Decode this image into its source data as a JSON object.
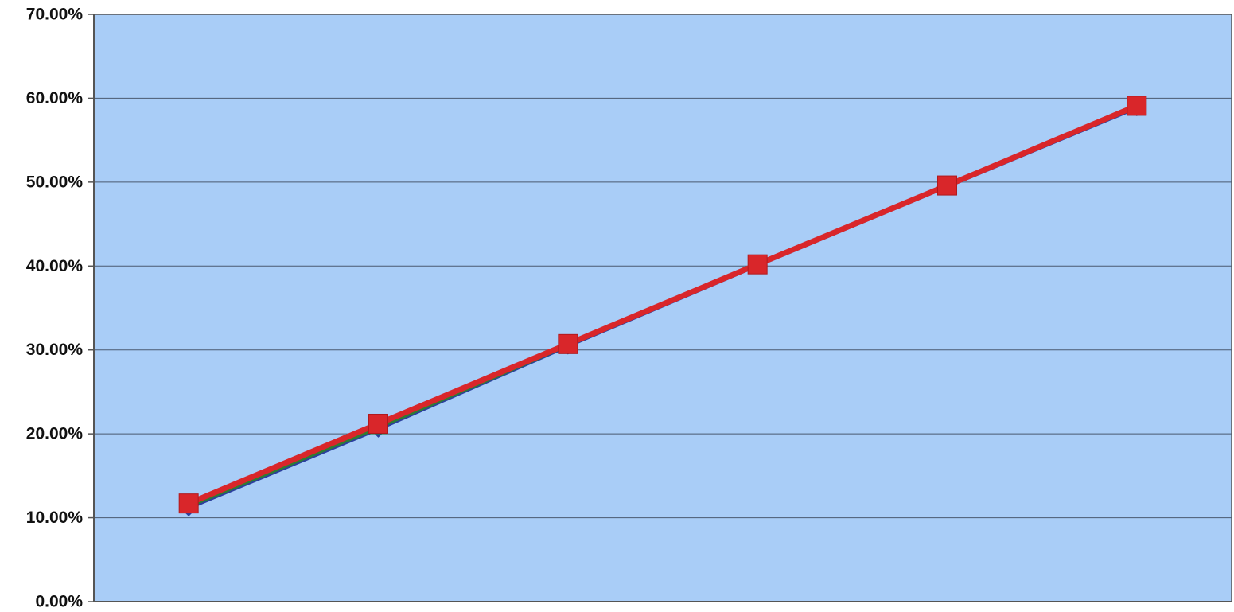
{
  "chart_data": {
    "type": "line",
    "title": "",
    "xlabel": "",
    "ylabel": "",
    "x": [
      1,
      2,
      3,
      4,
      5,
      6
    ],
    "ylim": [
      0,
      0.7
    ],
    "y_ticks": [
      0,
      0.1,
      0.2,
      0.3,
      0.4,
      0.5,
      0.6,
      0.7
    ],
    "y_tick_labels": [
      "0.00%",
      "10.00%",
      "20.00%",
      "30.00%",
      "40.00%",
      "50.00%",
      "60.00%",
      "70.00%"
    ],
    "grid": true,
    "legend": "none",
    "colors": {
      "plot_background": "#a9cdf7",
      "gridline": "#4a5a70",
      "axis": "#555555"
    },
    "series": [
      {
        "values": [
          0.112,
          0.206,
          0.305,
          0.401,
          0.495,
          0.589
        ],
        "color": "#2b3f9e",
        "marker": "diamond"
      },
      {
        "values": [
          0.114,
          0.208,
          0.306,
          0.402,
          0.496,
          0.59
        ],
        "color": "#2e7d32",
        "marker": "triangle"
      },
      {
        "values": [
          0.117,
          0.212,
          0.307,
          0.402,
          0.496,
          0.591
        ],
        "color": "#d9262a",
        "marker": "square"
      }
    ]
  }
}
